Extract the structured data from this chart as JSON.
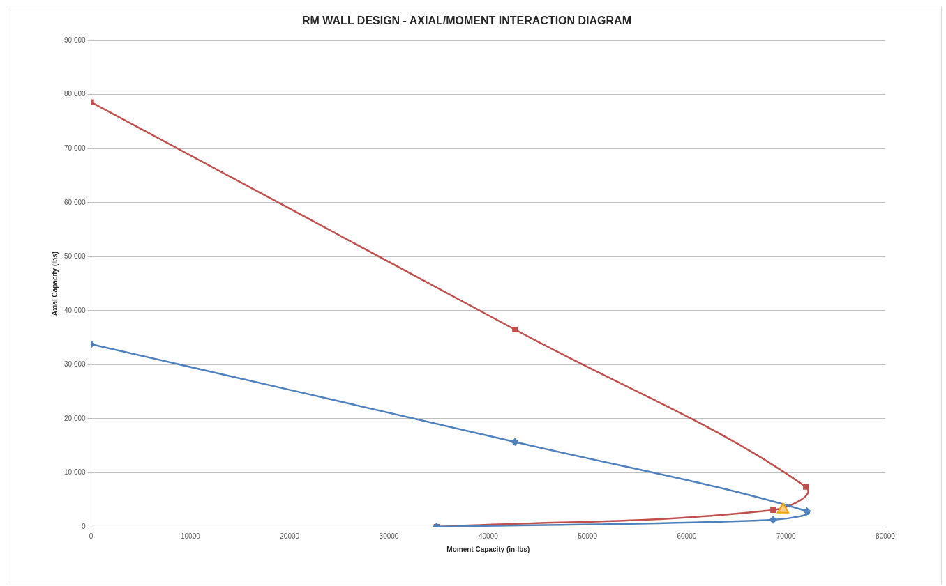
{
  "chart_data": {
    "type": "line",
    "title": "RM WALL DESIGN - AXIAL/MOMENT INTERACTION DIAGRAM",
    "xlabel": "Moment Capacity (in-lbs)",
    "ylabel": "Axial Capacity (lbs)",
    "xlim": [
      0,
      80000
    ],
    "xticks": [
      0,
      10000,
      20000,
      30000,
      40000,
      50000,
      60000,
      70000,
      80000
    ],
    "ylim": [
      0,
      90000
    ],
    "yticks": [
      {
        "value": 0,
        "label": "0"
      },
      {
        "value": 10000,
        "label": "10,000"
      },
      {
        "value": 20000,
        "label": "20,000"
      },
      {
        "value": 30000,
        "label": "30,000"
      },
      {
        "value": 40000,
        "label": "40,000"
      },
      {
        "value": 50000,
        "label": "50,000"
      },
      {
        "value": 60000,
        "label": "60,000"
      },
      {
        "value": 70000,
        "label": "70,000"
      },
      {
        "value": 80000,
        "label": "80,000"
      },
      {
        "value": 90000,
        "label": "90,000"
      }
    ],
    "grid": "y",
    "legend": false,
    "series": [
      {
        "color": "#4f81bd",
        "marker": "diamond",
        "x": [
          0,
          42700,
          72100,
          68700,
          34800
        ],
        "values": [
          33800,
          15700,
          2900,
          1300,
          0
        ]
      },
      {
        "color": "#c0504d",
        "marker": "square",
        "x": [
          0,
          42700,
          72000,
          68700,
          34800
        ],
        "values": [
          78600,
          36500,
          7400,
          3100,
          0
        ]
      },
      {
        "type": "scatter",
        "color": "#f9c98a",
        "marker": "triangle",
        "x": [
          69700
        ],
        "values": [
          3200
        ]
      }
    ]
  }
}
